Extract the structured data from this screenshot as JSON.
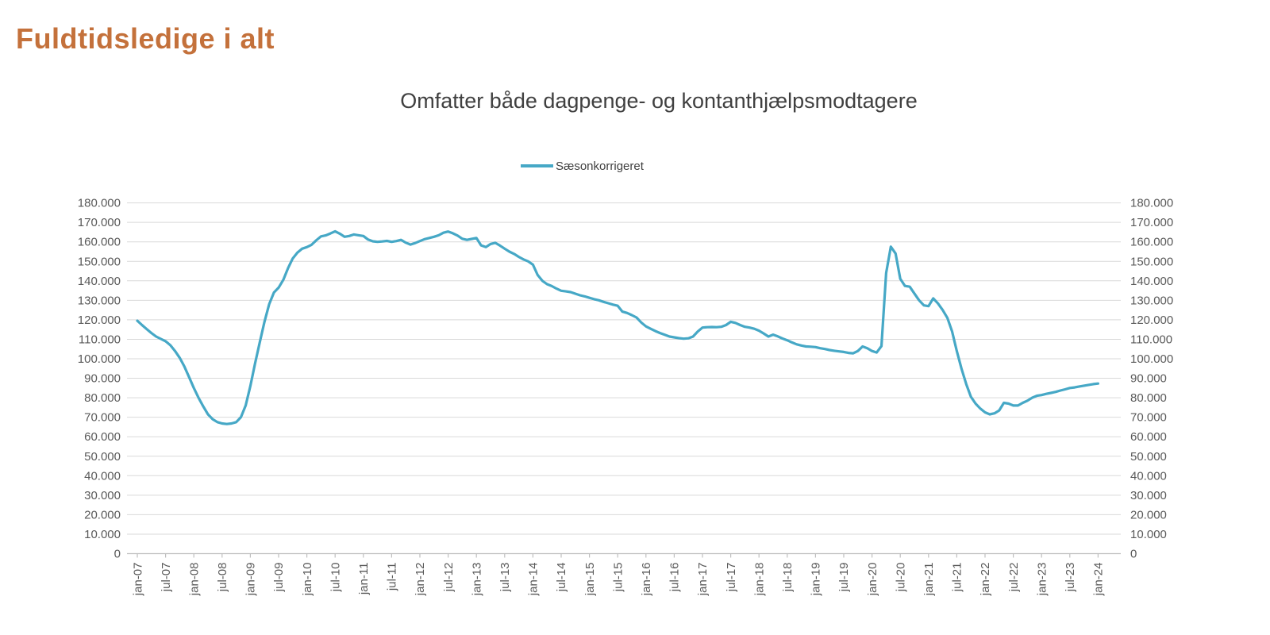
{
  "header": {
    "title": "Fuldtidsledige i alt"
  },
  "chart_data": {
    "type": "line",
    "title": "Omfatter både dagpenge- og kontanthjælpsmodtagere",
    "legend_entries": [
      "Sæsonkorrigeret"
    ],
    "legend_position": "top-center",
    "grid": "horizontal",
    "ylim": [
      0,
      180000
    ],
    "y_tick_step": 10000,
    "y_tick_labels_left": [
      "0",
      "10.000",
      "20.000",
      "30.000",
      "40.000",
      "50.000",
      "60.000",
      "70.000",
      "80.000",
      "90.000",
      "100.000",
      "110.000",
      "120.000",
      "130.000",
      "140.000",
      "150.000",
      "160.000",
      "170.000",
      "180.000"
    ],
    "y_tick_labels_right": [
      "0",
      "10.000",
      "20.000",
      "30.000",
      "40.000",
      "50.000",
      "60.000",
      "70.000",
      "80.000",
      "90.000",
      "100.000",
      "110.000",
      "120.000",
      "130.000",
      "140.000",
      "150.000",
      "160.000",
      "170.000",
      "180.000"
    ],
    "x_tick_labels": [
      "jan-07",
      "jul-07",
      "jan-08",
      "jul-08",
      "jan-09",
      "jul-09",
      "jan-10",
      "jul-10",
      "jan-11",
      "jul-11",
      "jan-12",
      "jul-12",
      "jan-13",
      "jul-13",
      "jan-14",
      "jul-14",
      "jan-15",
      "jul-15",
      "jan-16",
      "jul-16",
      "jan-17",
      "jul-17",
      "jan-18",
      "jul-18",
      "jan-19",
      "jul-19",
      "jan-20",
      "jul-20",
      "jan-21",
      "jul-21",
      "jan-22",
      "jul-22",
      "jan-23",
      "jul-23",
      "jan-24"
    ],
    "line_color": "#46A8C6",
    "series": [
      {
        "name": "Sæsonkorrigeret",
        "start": "jan-07",
        "end": "jan-24",
        "frequency": "monthly",
        "values": [
          119500,
          117300,
          115200,
          113200,
          111400,
          110200,
          109000,
          107000,
          104000,
          100500,
          96000,
          90500,
          85000,
          80000,
          75500,
          71500,
          69000,
          67500,
          66800,
          66500,
          66800,
          67500,
          70000,
          76000,
          86000,
          97500,
          108500,
          119000,
          128000,
          134000,
          136500,
          140500,
          146500,
          151500,
          154500,
          156500,
          157300,
          158500,
          160800,
          162800,
          163300,
          164300,
          165400,
          164200,
          162600,
          163000,
          163800,
          163400,
          163000,
          161200,
          160300,
          160000,
          160200,
          160500,
          160000,
          160400,
          161000,
          159600,
          158600,
          159400,
          160400,
          161400,
          162000,
          162600,
          163400,
          164700,
          165300,
          164400,
          163200,
          161600,
          161000,
          161500,
          162000,
          158200,
          157300,
          158900,
          159500,
          158100,
          156500,
          155000,
          153800,
          152300,
          151000,
          150000,
          148300,
          143000,
          140000,
          138300,
          137300,
          136000,
          134900,
          134600,
          134200,
          133400,
          132600,
          132000,
          131300,
          130600,
          130000,
          129200,
          128500,
          127800,
          127200,
          124200,
          123500,
          122400,
          121200,
          118600,
          116600,
          115400,
          114200,
          113200,
          112300,
          111400,
          111000,
          110600,
          110300,
          110500,
          111400,
          114000,
          116000,
          116200,
          116300,
          116200,
          116400,
          117300,
          119000,
          118400,
          117300,
          116400,
          116000,
          115400,
          114400,
          113000,
          111400,
          112400,
          111500,
          110400,
          109500,
          108400,
          107400,
          106800,
          106300,
          106200,
          106000,
          105400,
          105000,
          104500,
          104100,
          103800,
          103500,
          103000,
          102800,
          104000,
          106300,
          105400,
          104000,
          103200,
          106500,
          144000,
          157500,
          154000,
          141000,
          137400,
          137000,
          133500,
          130000,
          127400,
          127000,
          131000,
          128400,
          125000,
          121000,
          114000,
          104000,
          95000,
          87000,
          80500,
          77000,
          74400,
          72500,
          71500,
          72000,
          73500,
          77400,
          77000,
          76000,
          76000,
          77400,
          78500,
          80000,
          81000,
          81400,
          82000,
          82500,
          83000,
          83700,
          84300,
          85000,
          85300,
          85800,
          86200,
          86600,
          87000,
          87300
        ]
      }
    ],
    "colors": {
      "title_orange": "#C4713B",
      "subtitle_gray": "#404040",
      "axis_text_gray": "#595959",
      "gridline_gray": "#D9D9D9",
      "axis_line_gray": "#BFBFBF",
      "series_teal": "#46A8C6"
    }
  }
}
